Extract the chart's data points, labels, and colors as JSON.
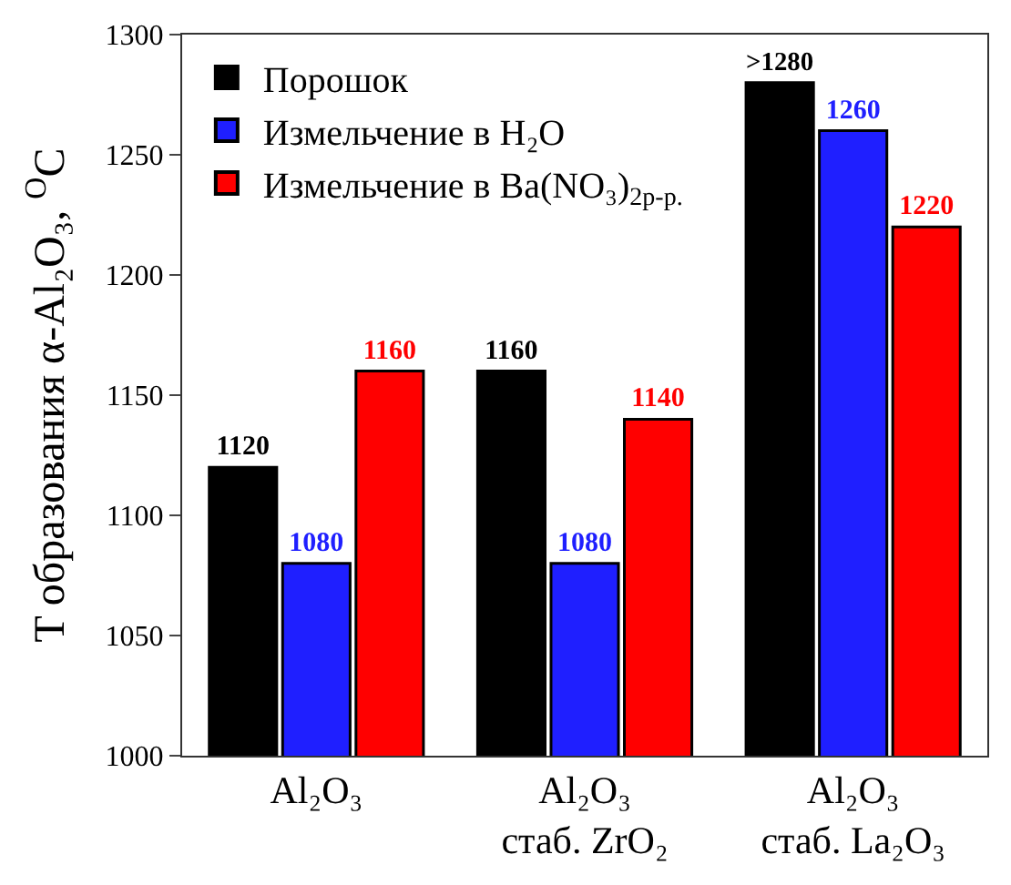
{
  "chart_data": {
    "type": "bar",
    "ylabel": "T образования α-Al₂O₃, $^{O}$C",
    "categories": [
      "Al₂O₃",
      "Al₂O₃\nстаб. ZrO₂",
      "Al₂O₃\nстаб. La₂O₃"
    ],
    "series": [
      {
        "name": "Порошок",
        "color": "#000000",
        "values": [
          1120,
          1160,
          1280
        ],
        "value_labels": [
          "1120",
          "1160",
          ">1280"
        ]
      },
      {
        "name": "Измельчение в H₂O",
        "color": "#1f1fff",
        "values": [
          1080,
          1080,
          1260
        ],
        "value_labels": [
          "1080",
          "1080",
          "1260"
        ]
      },
      {
        "name": "Измельчение в Ba(NO₃)$_{2р-р.}$",
        "color": "#ff0000",
        "values": [
          1160,
          1140,
          1220
        ],
        "value_labels": [
          "1160",
          "1140",
          "1220"
        ]
      }
    ],
    "ylim": [
      1000,
      1300
    ],
    "yticks": [
      1000,
      1050,
      1100,
      1150,
      1200,
      1250,
      1300
    ],
    "grid": false,
    "legend": "top left"
  }
}
